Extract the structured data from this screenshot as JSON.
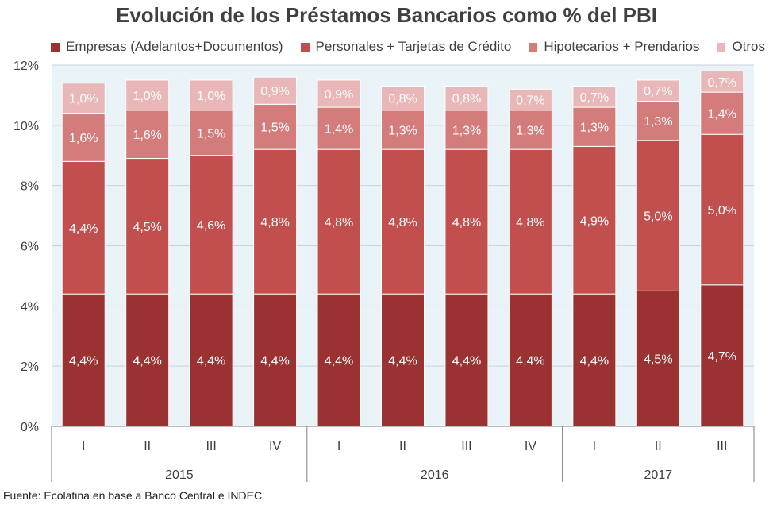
{
  "title": "Evolución de los Préstamos Bancarios como % del PBI",
  "source": "Fuente: Ecolatina en base a Banco Central e INDEC",
  "colors": {
    "plot_background": "#eaf3f8",
    "gridline": "#c9d3da",
    "axis": "#7f7f7f"
  },
  "chart_data": {
    "type": "bar",
    "stacked": true,
    "title": "Evolución de los Préstamos Bancarios como % del PBI",
    "categories": [
      "I",
      "II",
      "III",
      "IV",
      "I",
      "II",
      "III",
      "IV",
      "I",
      "II",
      "III"
    ],
    "groups": [
      {
        "label": "2015",
        "count": 4
      },
      {
        "label": "2016",
        "count": 4
      },
      {
        "label": "2017",
        "count": 3
      }
    ],
    "ylim": [
      0,
      12
    ],
    "yticks": [
      0,
      2,
      4,
      6,
      8,
      10,
      12
    ],
    "ytick_labels": [
      "0%",
      "2%",
      "4%",
      "6%",
      "8%",
      "10%",
      "12%"
    ],
    "grid": true,
    "legend_position": "top",
    "series": [
      {
        "name": "Empresas (Adelantos+Documentos)",
        "color": "#9b3232",
        "values": [
          4.4,
          4.4,
          4.4,
          4.4,
          4.4,
          4.4,
          4.4,
          4.4,
          4.4,
          4.5,
          4.7
        ],
        "labels": [
          "4,4%",
          "4,4%",
          "4,4%",
          "4,4%",
          "4,4%",
          "4,4%",
          "4,4%",
          "4,4%",
          "4,4%",
          "4,5%",
          "4,7%"
        ]
      },
      {
        "name": "Personales + Tarjetas de Crédito",
        "color": "#c04f4d",
        "values": [
          4.4,
          4.5,
          4.6,
          4.8,
          4.8,
          4.8,
          4.8,
          4.8,
          4.9,
          5.0,
          5.0
        ],
        "labels": [
          "4,4%",
          "4,5%",
          "4,6%",
          "4,8%",
          "4,8%",
          "4,8%",
          "4,8%",
          "4,8%",
          "4,9%",
          "5,0%",
          "5,0%"
        ]
      },
      {
        "name": "Hipotecarios + Prendarios",
        "color": "#d47b7b",
        "values": [
          1.6,
          1.6,
          1.5,
          1.5,
          1.4,
          1.3,
          1.3,
          1.3,
          1.3,
          1.3,
          1.4
        ],
        "labels": [
          "1,6%",
          "1,6%",
          "1,5%",
          "1,5%",
          "1,4%",
          "1,3%",
          "1,3%",
          "1,3%",
          "1,3%",
          "1,3%",
          "1,4%"
        ]
      },
      {
        "name": "Otros",
        "color": "#e9b7b7",
        "values": [
          1.0,
          1.0,
          1.0,
          0.9,
          0.9,
          0.8,
          0.8,
          0.7,
          0.7,
          0.7,
          0.7
        ],
        "labels": [
          "1,0%",
          "1,0%",
          "1,0%",
          "0,9%",
          "0,9%",
          "0,8%",
          "0,8%",
          "0,7%",
          "0,7%",
          "0,7%",
          "0,7%"
        ]
      }
    ]
  }
}
